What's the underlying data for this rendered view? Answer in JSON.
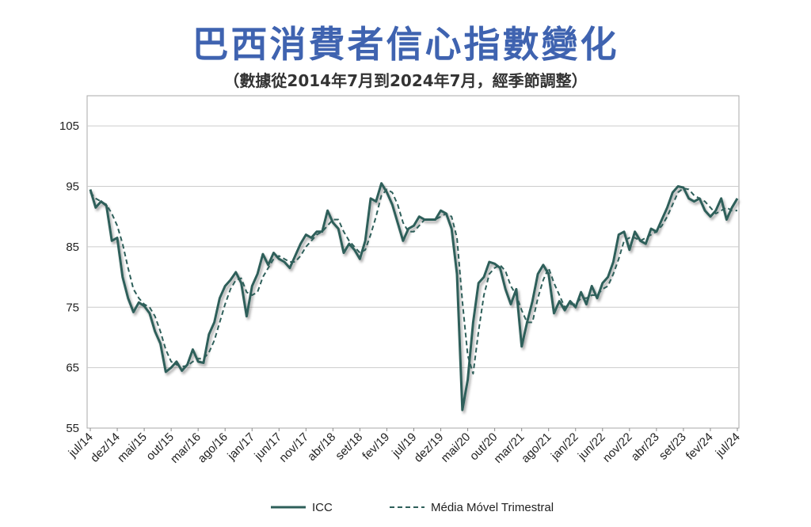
{
  "title": "巴西消費者信心指數變化",
  "subtitle": "（數據從2014年7月到2024年7月，經季節調整）",
  "colors": {
    "icc": "#2e5f5a",
    "mm": "#2e5f5a",
    "grid": "#cccccc",
    "frame": "#aaaaaa"
  },
  "chart_data": {
    "type": "line",
    "ylim": [
      55,
      110
    ],
    "yticks": [
      55,
      65,
      75,
      85,
      95,
      105
    ],
    "xticks": [
      "jul/14",
      "dez/14",
      "mai/15",
      "out/15",
      "mar/16",
      "ago/16",
      "jan/17",
      "jun/17",
      "nov/17",
      "abr/18",
      "set/18",
      "fev/19",
      "jul/19",
      "dez/19",
      "mai/20",
      "out/20",
      "mar/21",
      "ago/21",
      "jan/22",
      "jun/22",
      "nov/22",
      "abr/23",
      "set/23",
      "fev/24",
      "jul/24"
    ],
    "legend": {
      "position": "bottom",
      "entries": [
        "ICC",
        "Média Móvel Trimestral"
      ]
    },
    "series": [
      {
        "name": "ICC",
        "style": "solid",
        "values": [
          94.5,
          91.5,
          92.5,
          91.8,
          86.0,
          86.5,
          80.0,
          76.5,
          74.2,
          75.8,
          75.2,
          74.0,
          71.0,
          69.0,
          64.3,
          65.0,
          66.0,
          64.5,
          65.5,
          68.0,
          66.0,
          65.8,
          70.5,
          72.5,
          76.5,
          78.5,
          79.5,
          80.8,
          79.0,
          73.5,
          78.5,
          80.5,
          83.8,
          82.0,
          84.0,
          83.0,
          82.5,
          81.5,
          83.5,
          85.5,
          87.0,
          86.5,
          87.5,
          87.5,
          91.0,
          89.0,
          88.0,
          84.0,
          85.5,
          84.5,
          83.0,
          86.0,
          93.0,
          92.5,
          95.5,
          94.0,
          92.0,
          89.0,
          86.0,
          88.0,
          88.5,
          90.0,
          89.5,
          89.5,
          89.5,
          91.0,
          90.5,
          88.0,
          80.5,
          58.0,
          63.0,
          72.5,
          79.0,
          80.0,
          82.5,
          82.2,
          81.5,
          78.0,
          75.5,
          78.0,
          68.5,
          72.5,
          76.0,
          80.5,
          82.0,
          80.5,
          74.0,
          76.0,
          74.5,
          76.0,
          75.0,
          77.5,
          75.5,
          78.5,
          76.5,
          79.0,
          80.0,
          82.5,
          87.0,
          87.5,
          84.5,
          87.5,
          86.0,
          85.5,
          88.0,
          87.5,
          89.5,
          91.5,
          94.0,
          95.0,
          94.8,
          93.0,
          92.5,
          93.0,
          91.0,
          90.0,
          91.0,
          93.0,
          89.5,
          91.5,
          93.0
        ]
      },
      {
        "name": "Média Móvel Trimestral",
        "style": "dashed",
        "values": [
          94.0,
          93.0,
          92.5,
          92.0,
          90.5,
          88.5,
          85.5,
          81.5,
          78.0,
          76.5,
          75.5,
          75.0,
          73.5,
          71.0,
          68.0,
          66.0,
          65.5,
          65.2,
          65.3,
          66.0,
          66.5,
          66.5,
          67.5,
          69.5,
          72.5,
          75.5,
          78.0,
          79.5,
          79.8,
          77.5,
          77.0,
          77.5,
          80.0,
          81.5,
          83.0,
          83.5,
          83.0,
          82.5,
          82.5,
          83.5,
          85.0,
          86.0,
          87.0,
          87.5,
          88.5,
          89.5,
          89.5,
          87.5,
          86.0,
          85.0,
          84.0,
          84.5,
          87.0,
          90.0,
          93.5,
          94.5,
          94.0,
          92.0,
          89.0,
          87.5,
          87.5,
          88.5,
          89.5,
          89.5,
          89.5,
          90.0,
          90.5,
          90.0,
          86.5,
          76.0,
          67.0,
          64.0,
          71.0,
          77.0,
          80.5,
          81.5,
          82.0,
          81.0,
          78.5,
          77.0,
          74.5,
          72.5,
          72.5,
          76.5,
          79.5,
          81.5,
          79.0,
          77.0,
          75.0,
          75.5,
          75.5,
          76.5,
          76.5,
          77.0,
          77.0,
          78.0,
          78.5,
          80.5,
          83.0,
          86.0,
          86.5,
          86.5,
          86.0,
          86.5,
          87.0,
          87.5,
          88.5,
          90.0,
          92.0,
          94.0,
          94.7,
          94.5,
          93.5,
          93.0,
          92.5,
          91.5,
          90.5,
          91.0,
          91.5,
          91.0,
          91.0
        ]
      }
    ]
  }
}
